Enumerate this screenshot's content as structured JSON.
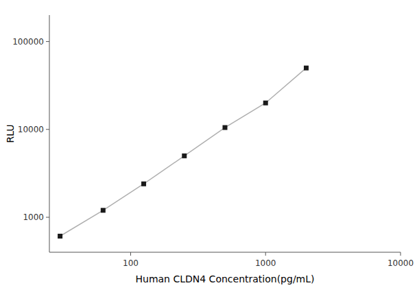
{
  "chart_data": {
    "type": "line",
    "x": [
      30,
      62.5,
      125,
      250,
      500,
      1000,
      2000
    ],
    "values": [
      610,
      1200,
      2400,
      5000,
      10500,
      20000,
      50000
    ],
    "xlabel": "Human CLDN4 Concentration(pg/mL)",
    "ylabel": "RLU",
    "xlim": [
      25,
      10000
    ],
    "ylim": [
      400,
      200000
    ],
    "xticks": [
      100,
      1000,
      10000
    ],
    "yticks": [
      1000,
      10000,
      100000
    ],
    "log": true,
    "grid": false,
    "color": "#1a1a1a",
    "marker": "square"
  }
}
